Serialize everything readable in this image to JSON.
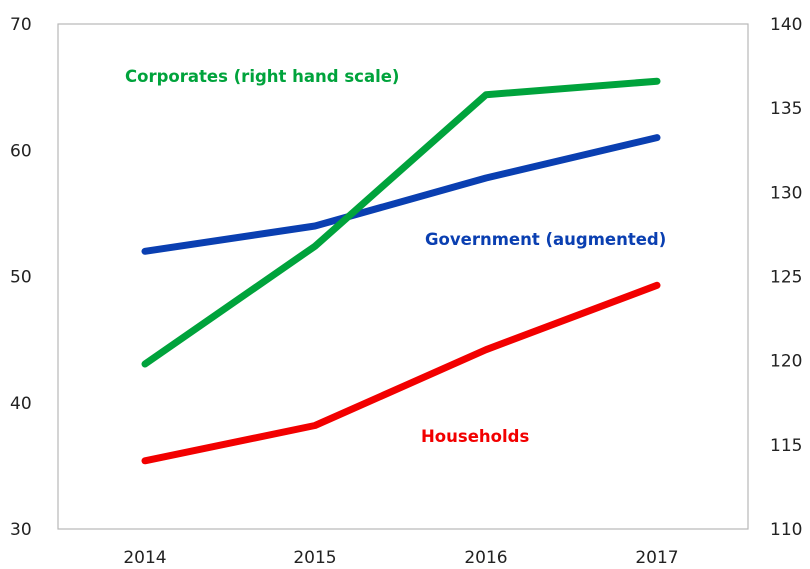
{
  "chart_data": {
    "type": "line",
    "title": "",
    "categories": [
      "2014",
      "2015",
      "2016",
      "2017"
    ],
    "left_axis": {
      "ylim": [
        30,
        70
      ],
      "ticks": [
        "30",
        "40",
        "50",
        "60",
        "70"
      ]
    },
    "right_axis": {
      "ylim": [
        110,
        140
      ],
      "ticks": [
        "110",
        "115",
        "120",
        "125",
        "130",
        "135",
        "140"
      ]
    },
    "grid": false,
    "series": [
      {
        "name": "Corporates (right hand scale)",
        "axis": "right",
        "color": "#00a33c",
        "values": [
          119.8,
          126.8,
          135.8,
          136.6
        ]
      },
      {
        "name": "Government (augmented)",
        "axis": "left",
        "color": "#0a3fb1",
        "values": [
          52.0,
          54.0,
          57.8,
          61.0
        ]
      },
      {
        "name": "Households",
        "axis": "left",
        "color": "#f20000",
        "values": [
          35.4,
          38.2,
          44.2,
          49.3
        ]
      }
    ]
  }
}
